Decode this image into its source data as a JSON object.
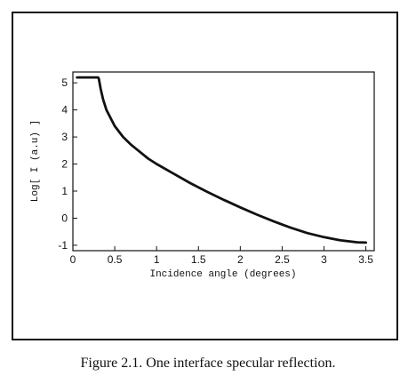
{
  "caption": "Figure 2.1. One interface specular reflection.",
  "chart_data": {
    "type": "line",
    "title": "",
    "xlabel": "Incidence angle (degrees)",
    "ylabel": "Log[ I (a.u) ]",
    "xlim": [
      0,
      3.6
    ],
    "ylim": [
      -1.2,
      5.4
    ],
    "xticks": [
      0,
      0.5,
      1,
      1.5,
      2,
      2.5,
      3,
      3.5
    ],
    "xtick_labels": [
      "0",
      "0.5",
      "1",
      "1.5",
      "2",
      "2.5",
      "3",
      "3.5"
    ],
    "yticks": [
      -1,
      0,
      1,
      2,
      3,
      4,
      5
    ],
    "ytick_labels": [
      "-1",
      "0",
      "1",
      "2",
      "3",
      "4",
      "5"
    ],
    "grid": false,
    "series": [
      {
        "values_x": [
          0.05,
          0.1,
          0.2,
          0.3,
          0.31,
          0.33,
          0.36,
          0.4,
          0.5,
          0.6,
          0.7,
          0.8,
          0.9,
          1.0,
          1.2,
          1.4,
          1.6,
          1.8,
          2.0,
          2.2,
          2.4,
          2.6,
          2.8,
          3.0,
          3.2,
          3.4,
          3.5
        ],
        "values_y": [
          5.2,
          5.2,
          5.2,
          5.2,
          5.15,
          4.8,
          4.4,
          4.0,
          3.4,
          3.0,
          2.7,
          2.45,
          2.2,
          2.0,
          1.65,
          1.3,
          0.98,
          0.68,
          0.4,
          0.13,
          -0.12,
          -0.35,
          -0.55,
          -0.7,
          -0.82,
          -0.89,
          -0.9
        ]
      }
    ]
  }
}
